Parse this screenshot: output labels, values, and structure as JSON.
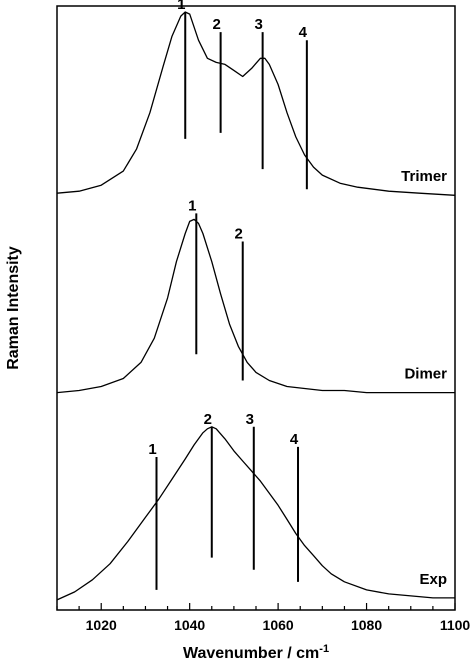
{
  "chart_data": {
    "type": "line",
    "xlabel": "Wavenumber / cm",
    "xlabel_superscript": "-1",
    "ylabel": "Raman Intensity",
    "xlim": [
      1010,
      1100
    ],
    "x_ticks": [
      1020,
      1040,
      1060,
      1080,
      1100
    ],
    "x_tick_labels": [
      "1020",
      "1040",
      "1060",
      "1080",
      "1100"
    ],
    "ylim": [
      0,
      3
    ],
    "y_ticks_visible": false,
    "grid": false,
    "legend": "none",
    "line_color": "#000000",
    "series": [
      {
        "name": "Trimer",
        "offset": 2.05,
        "x": [
          1010,
          1015,
          1020,
          1025,
          1028,
          1031,
          1034,
          1036,
          1038,
          1039,
          1040,
          1042,
          1044,
          1046,
          1048,
          1050,
          1052,
          1054,
          1056,
          1057,
          1058,
          1060,
          1062,
          1064,
          1066,
          1068,
          1070,
          1074,
          1078,
          1085,
          1092,
          1100
        ],
        "y": [
          0.02,
          0.03,
          0.06,
          0.13,
          0.24,
          0.42,
          0.65,
          0.8,
          0.9,
          0.92,
          0.91,
          0.78,
          0.69,
          0.67,
          0.66,
          0.63,
          0.6,
          0.64,
          0.69,
          0.69,
          0.66,
          0.56,
          0.42,
          0.3,
          0.21,
          0.15,
          0.11,
          0.07,
          0.05,
          0.03,
          0.02,
          0.01
        ],
        "peaks": [
          {
            "label": "1",
            "x": 1039,
            "y_top": 0.92,
            "y_bottom": 0.29
          },
          {
            "label": "2",
            "x": 1047,
            "y_top": 0.82,
            "y_bottom": 0.32
          },
          {
            "label": "3",
            "x": 1056.5,
            "y_top": 0.82,
            "y_bottom": 0.14
          },
          {
            "label": "4",
            "x": 1066.5,
            "y_top": 0.78,
            "y_bottom": 0.04
          }
        ]
      },
      {
        "name": "Dimer",
        "offset": 1.07,
        "x": [
          1010,
          1015,
          1020,
          1025,
          1029,
          1032,
          1035,
          1037,
          1039,
          1040,
          1041,
          1042,
          1043,
          1045,
          1047,
          1049,
          1051,
          1053,
          1055,
          1058,
          1062,
          1066,
          1070,
          1075,
          1080,
          1090,
          1100
        ],
        "y": [
          0.01,
          0.02,
          0.04,
          0.08,
          0.16,
          0.28,
          0.48,
          0.66,
          0.8,
          0.86,
          0.87,
          0.85,
          0.8,
          0.66,
          0.5,
          0.35,
          0.24,
          0.16,
          0.11,
          0.07,
          0.04,
          0.03,
          0.02,
          0.02,
          0.01,
          0.01,
          0.01
        ],
        "peaks": [
          {
            "label": "1",
            "x": 1041.5,
            "y_top": 0.9,
            "y_bottom": 0.2
          },
          {
            "label": "2",
            "x": 1052,
            "y_top": 0.76,
            "y_bottom": 0.07
          }
        ]
      },
      {
        "name": "Exp",
        "offset": 0.05,
        "x": [
          1010,
          1014,
          1018,
          1022,
          1026,
          1030,
          1033,
          1036,
          1039,
          1041,
          1043,
          1044,
          1045,
          1046,
          1048,
          1050,
          1052,
          1054,
          1056,
          1058,
          1060,
          1062,
          1064,
          1066,
          1068,
          1070,
          1072,
          1075,
          1080,
          1085,
          1090,
          1095,
          1100
        ],
        "y": [
          0.0,
          0.04,
          0.1,
          0.18,
          0.29,
          0.41,
          0.5,
          0.6,
          0.7,
          0.77,
          0.83,
          0.85,
          0.86,
          0.85,
          0.8,
          0.74,
          0.69,
          0.64,
          0.59,
          0.53,
          0.47,
          0.4,
          0.33,
          0.27,
          0.22,
          0.17,
          0.13,
          0.09,
          0.05,
          0.03,
          0.02,
          0.01,
          0.01
        ],
        "peaks": [
          {
            "label": "1",
            "x": 1032.5,
            "y_top": 0.71,
            "y_bottom": 0.05
          },
          {
            "label": "2",
            "x": 1045,
            "y_top": 0.86,
            "y_bottom": 0.21
          },
          {
            "label": "3",
            "x": 1054.5,
            "y_top": 0.86,
            "y_bottom": 0.15
          },
          {
            "label": "4",
            "x": 1064.5,
            "y_top": 0.76,
            "y_bottom": 0.09
          }
        ]
      }
    ]
  }
}
